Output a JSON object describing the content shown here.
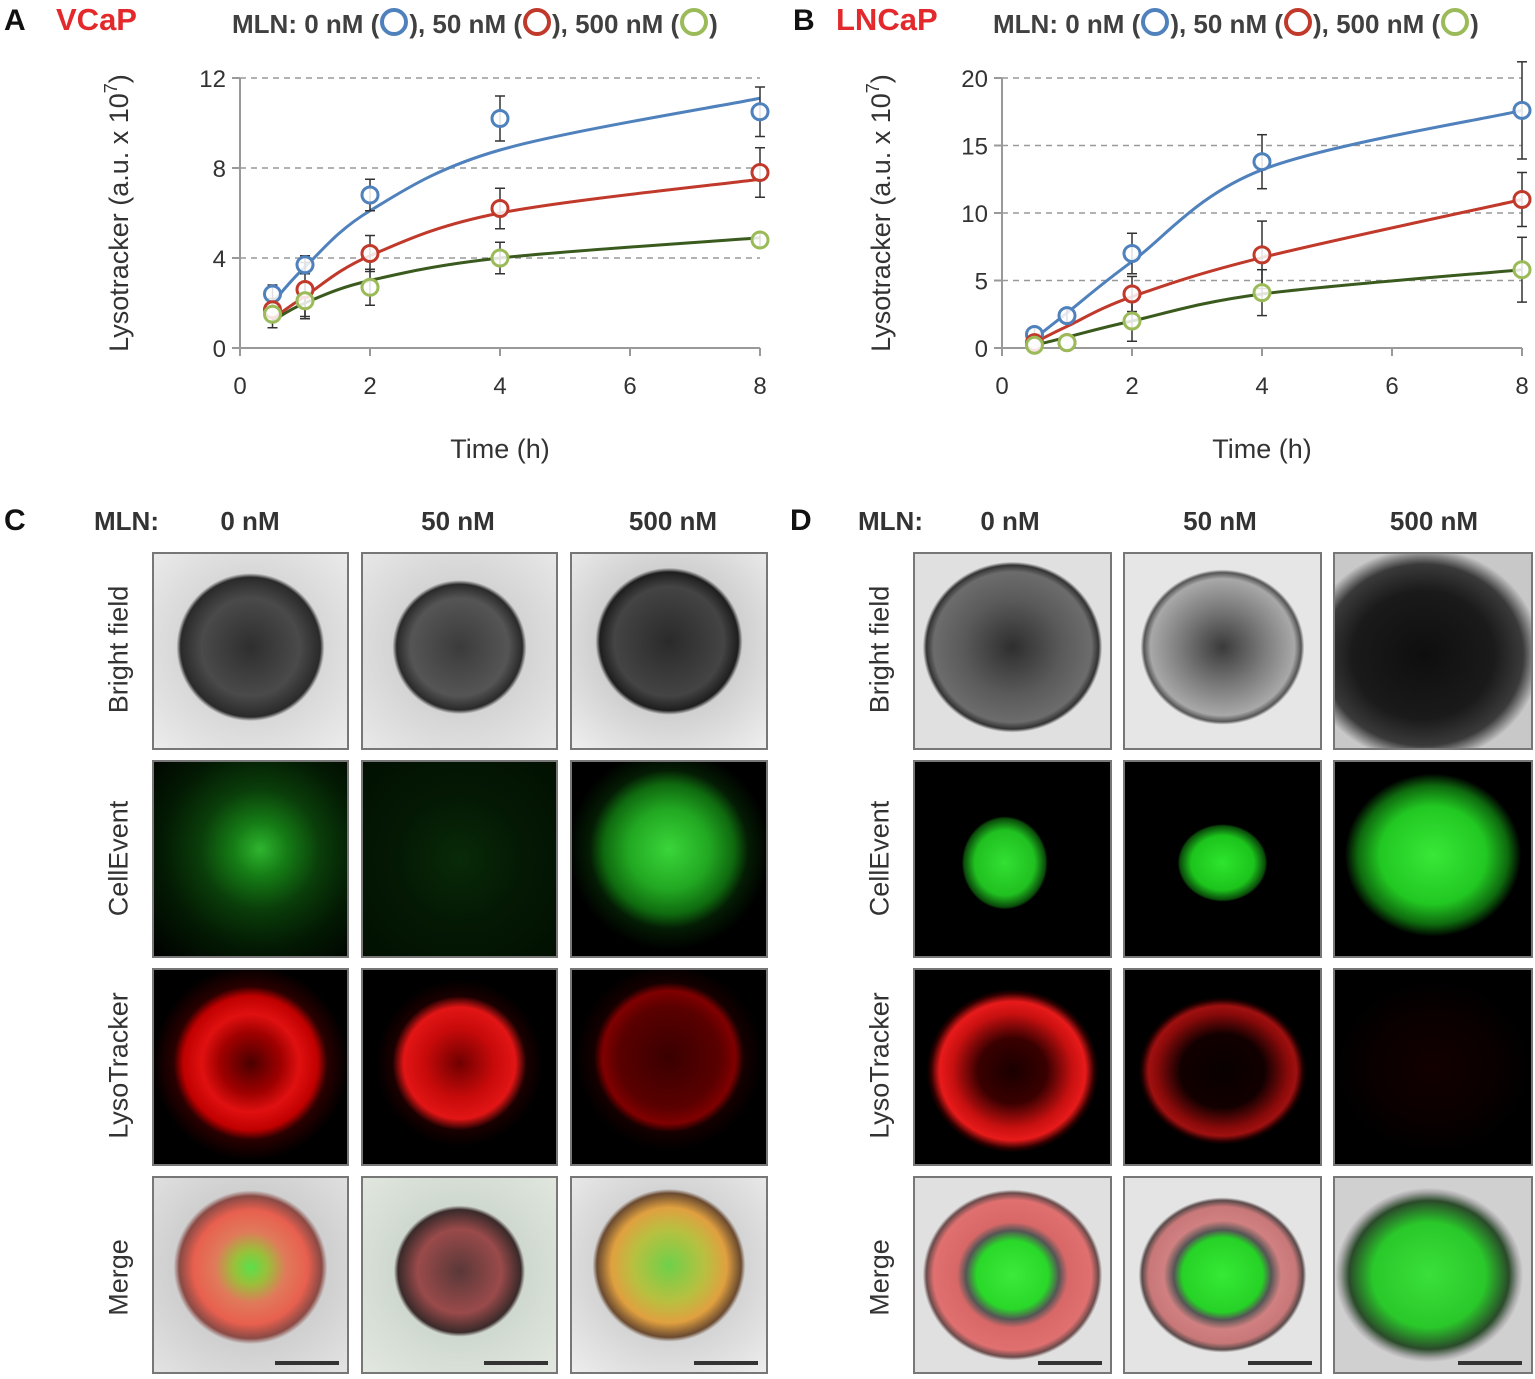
{
  "panels": {
    "A": {
      "letter": "A",
      "cell_line": "VCaP"
    },
    "B": {
      "letter": "B",
      "cell_line": "LNCaP"
    },
    "C": {
      "letter": "C"
    },
    "D": {
      "letter": "D"
    }
  },
  "legend": {
    "prefix": "MLN: 0 nM (",
    "sep1": "), 50 nM (",
    "sep2": "), 500 nM (",
    "suffix": ")"
  },
  "colors": {
    "blue": "#4f81bd",
    "red": "#c0392b",
    "green": "#9bbb59",
    "dark_green": "#3a5a1e",
    "title_red": "#e3292c"
  },
  "chart_data": [
    {
      "type": "scatter",
      "title": "VCaP",
      "xlabel": "Time (h)",
      "ylabel": "Lysotracker (a.u. x 10",
      "ylabel_sup": "7",
      "ylabel_end": ")",
      "xlim": [
        0,
        8
      ],
      "ylim": [
        0,
        12
      ],
      "xticks": [
        "0",
        "2",
        "4",
        "6",
        "8"
      ],
      "yticks": [
        "0",
        "4",
        "8",
        "12"
      ],
      "x": [
        0.5,
        1,
        2,
        4,
        8
      ],
      "series": [
        {
          "name": "0 nM",
          "values": [
            2.4,
            3.7,
            6.8,
            10.2,
            10.5
          ],
          "err": [
            0.4,
            0.4,
            0.7,
            1.0,
            1.1
          ],
          "fit": [
            2.0,
            3.6,
            6.1,
            8.8,
            11.1
          ]
        },
        {
          "name": "50 nM",
          "values": [
            1.7,
            2.6,
            4.2,
            6.2,
            7.8
          ],
          "err": [
            0.5,
            1.2,
            0.8,
            0.9,
            1.1
          ],
          "fit": [
            1.3,
            2.3,
            4.1,
            6.0,
            7.5
          ]
        },
        {
          "name": "500 nM",
          "values": [
            1.5,
            2.1,
            2.7,
            4.0,
            4.8
          ],
          "err": [
            0.6,
            0.8,
            0.8,
            0.7,
            0.3
          ],
          "fit": [
            1.2,
            2.0,
            3.0,
            4.0,
            4.9
          ]
        }
      ]
    },
    {
      "type": "scatter",
      "title": "LNCaP",
      "xlabel": "Time (h)",
      "ylabel": "Lysotracker (a.u. x 10",
      "ylabel_sup": "7",
      "ylabel_end": ")",
      "xlim": [
        0,
        8
      ],
      "ylim": [
        0,
        20
      ],
      "xticks": [
        "0",
        "2",
        "4",
        "6",
        "8"
      ],
      "yticks": [
        "0",
        "5",
        "10",
        "15",
        "20"
      ],
      "x": [
        0.5,
        1,
        2,
        4,
        8
      ],
      "series": [
        {
          "name": "0 nM",
          "values": [
            1.0,
            2.4,
            7.0,
            13.8,
            17.6
          ],
          "err": [
            0.5,
            0.5,
            1.5,
            2.0,
            3.6
          ],
          "fit": [
            0.7,
            2.6,
            6.4,
            13.2,
            17.6
          ]
        },
        {
          "name": "50 nM",
          "values": [
            0.4,
            0.4,
            4.0,
            6.9,
            11.0
          ],
          "err": [
            0.3,
            0.3,
            1.3,
            2.5,
            2.0
          ],
          "fit": [
            0.4,
            1.6,
            3.8,
            6.7,
            11.0
          ]
        },
        {
          "name": "500 nM",
          "values": [
            0.2,
            0.4,
            2.0,
            4.1,
            5.8
          ],
          "err": [
            0.2,
            0.2,
            1.5,
            1.7,
            2.4
          ],
          "fit": [
            0.2,
            0.8,
            2.0,
            4.0,
            5.8
          ]
        }
      ]
    }
  ],
  "micrographs": {
    "mln_label": "MLN:",
    "columns": [
      "0 nM",
      "50 nM",
      "500 nM"
    ],
    "rows": [
      "Bright field",
      "CellEvent",
      "LysoTracker",
      "Merge"
    ]
  }
}
